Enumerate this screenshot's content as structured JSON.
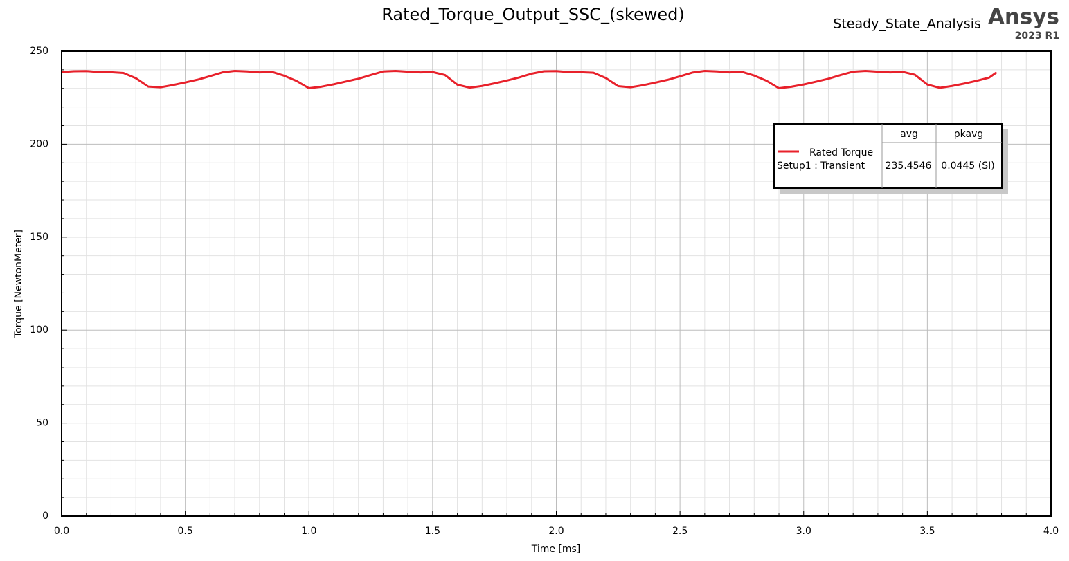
{
  "chart_data": {
    "type": "line",
    "title": "Rated_Torque_Output_SSC_(skewed)",
    "subtitle": "Steady_State_Analysis",
    "brand": "Ansys",
    "version": "2023 R1",
    "x_label": "Time [ms]",
    "y_label": "Torque [NewtonMeter]",
    "xlim": [
      0,
      4
    ],
    "xticks": [
      {
        "value": 0,
        "label": "0.0"
      },
      0.5,
      {
        "value": 1,
        "label": "1.0"
      },
      1.5,
      {
        "value": 2,
        "label": "2.0"
      },
      2.5,
      {
        "value": 3,
        "label": "3.0"
      },
      3.5,
      {
        "value": 4,
        "label": "4.0"
      }
    ],
    "ylim": [
      0,
      250
    ],
    "yticks": [
      0,
      50,
      100,
      150,
      200,
      250
    ],
    "grid": true,
    "x": [
      0,
      0.05,
      0.1,
      0.15,
      0.2,
      0.25,
      0.3,
      0.35,
      0.4,
      0.45,
      0.5,
      0.55,
      0.6,
      0.65,
      0.7,
      0.75,
      0.8,
      0.85,
      0.9,
      0.95,
      1,
      1.05,
      1.1,
      1.15,
      1.2,
      1.25,
      1.3,
      1.35,
      1.4,
      1.45,
      1.5,
      1.55,
      1.6,
      1.65,
      1.7,
      1.75,
      1.8,
      1.85,
      1.9,
      1.95,
      2,
      2.05,
      2.1,
      2.15,
      2.2,
      2.25,
      2.3,
      2.35,
      2.4,
      2.45,
      2.5,
      2.55,
      2.6,
      2.65,
      2.7,
      2.75,
      2.8,
      2.85,
      2.9,
      2.95,
      3,
      3.05,
      3.1,
      3.15,
      3.2,
      3.25,
      3.3,
      3.35,
      3.4,
      3.45,
      3.5,
      3.55,
      3.6,
      3.65,
      3.7,
      3.75,
      3.78
    ],
    "series": [
      {
        "name": "Rated Torque",
        "color": "#e8212b",
        "values": [
          238.8,
          239.2,
          239.3,
          238.8,
          238.7,
          238.3,
          235.5,
          231,
          230.6,
          231.8,
          233.2,
          234.7,
          236.6,
          238.6,
          239.4,
          239.1,
          238.6,
          238.9,
          236.8,
          234,
          230.1,
          230.9,
          232.2,
          233.7,
          235.2,
          237.2,
          239.1,
          239.4,
          239,
          238.6,
          238.8,
          237.2,
          232,
          230.4,
          231.3,
          232.7,
          234.2,
          235.9,
          237.9,
          239.2,
          239.3,
          238.8,
          238.7,
          238.4,
          235.6,
          231.2,
          230.6,
          231.7,
          233.1,
          234.6,
          236.5,
          238.5,
          239.4,
          239.1,
          238.6,
          238.9,
          236.9,
          234.1,
          230.1,
          230.9,
          232.1,
          233.6,
          235.2,
          237.2,
          239,
          239.4,
          239,
          238.6,
          238.9,
          237.3,
          232.1,
          230.3,
          231.3,
          232.6,
          234.1,
          235.8,
          238.6
        ]
      }
    ],
    "legend_table": {
      "columns": [
        "avg",
        "pkavg"
      ],
      "setup": "Setup1 : Transient",
      "cells": [
        "235.4546",
        "0.0445 (SI)"
      ]
    }
  }
}
